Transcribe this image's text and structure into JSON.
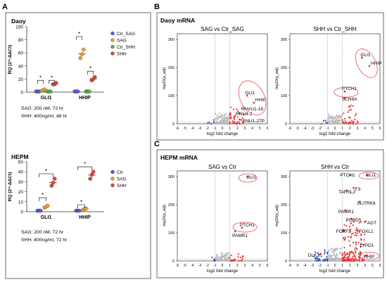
{
  "panel_letters": {
    "a": "A",
    "b": "B",
    "c": "C"
  },
  "colors": {
    "ctr_purple": "#5b5bd6",
    "sag_orange": "#f0a030",
    "ctr_shh_green": "#56b04a",
    "shh_red": "#e3443a",
    "volcano_up": "#e83030",
    "volcano_down": "#3050c0",
    "volcano_ns": "#b8b8b8",
    "highlight": "#e05050"
  },
  "panel_a": {
    "daoy": {
      "title": "Daoy",
      "ylabel": "RQ (2^-ΔΔCt)",
      "categories": [
        "GLI1",
        "HHIP"
      ],
      "ylim": [
        0,
        100
      ],
      "yticks": [
        "0",
        "20",
        "40",
        "60",
        "80",
        "100"
      ],
      "legend": [
        "Ctr_SAG",
        "SAG",
        "Ctr_SHH",
        "SHH"
      ],
      "sig": [
        "*",
        "*",
        "*",
        "*"
      ],
      "notes": [
        "SAG: 200 nM, 72 hr",
        "SHH: 400ng/ml, 48 hr"
      ]
    },
    "hepm": {
      "title": "HEPM",
      "ylabel": "RQ (2^-ΔΔCt)",
      "categories": [
        "GLI1",
        "HHIP"
      ],
      "ylim": [
        0,
        50
      ],
      "yticks": [
        "0",
        "10",
        "20",
        "30",
        "40",
        "50"
      ],
      "legend": [
        "Ctr",
        "SAG",
        "SHH"
      ],
      "sig": [
        "*",
        "*",
        "*",
        "*"
      ],
      "notes": [
        "SAG: 200 nM, 72 hr",
        "SHH: 400ng/ml, 72 hr"
      ]
    }
  },
  "panel_b": {
    "title": "Daoy mRNA",
    "plot1": {
      "title": "SAG vs Ctr_SAG",
      "genes": [
        "GLI1",
        "HHIP",
        "RNVU1-18",
        "RNU4-2",
        "RNU1-27P"
      ]
    },
    "plot2": {
      "title": "SHH vs Ctr_SHH",
      "genes": [
        "GLI1",
        "HHIP",
        "PTCH1",
        "SCN9A"
      ]
    }
  },
  "panel_c": {
    "title": "HEPM mRNA",
    "plot1": {
      "title": "SAG vs Ctr",
      "genes": [
        "GLI1",
        "PTCH1",
        "PAMR1"
      ]
    },
    "plot2": {
      "title": "SHH vs Ctr",
      "genes": [
        "PTCH1",
        "GLI1",
        "TARSL2",
        "F3",
        "SLITRK6",
        "PAMR1",
        "PGBD5",
        "AGT",
        "FOXF2",
        "FOXL1",
        "LYPD1",
        "DLK1",
        "HHIP"
      ]
    }
  },
  "volcano_axes": {
    "xlabel": "log2 fold change",
    "ylabel": "-log10(p_adj)",
    "xticks": [
      "-6",
      "-5",
      "-4",
      "-3",
      "-2",
      "-1",
      "0",
      "1",
      "2",
      "3",
      "4",
      "5",
      "6"
    ],
    "yticks": [
      "0",
      "100",
      "200",
      "300"
    ]
  },
  "chart_data": [
    {
      "type": "scatter",
      "title": "Daoy",
      "ylabel": "RQ (2^-ΔΔCt)",
      "categories": [
        "GLI1",
        "HHIP"
      ],
      "ylim": [
        0,
        100
      ],
      "series": [
        {
          "name": "Ctr_SAG",
          "values": [
            [
              1,
              1,
              1
            ],
            [
              1,
              1,
              1
            ]
          ]
        },
        {
          "name": "SAG",
          "values": [
            [
              2,
              3,
              4
            ],
            [
              52,
              58,
              65
            ]
          ]
        },
        {
          "name": "Ctr_SHH",
          "values": [
            [
              1,
              1,
              1
            ],
            [
              1,
              1,
              1
            ]
          ]
        },
        {
          "name": "SHH",
          "values": [
            [
              12,
              12,
              14
            ],
            [
              18,
              20,
              23
            ]
          ]
        }
      ]
    },
    {
      "type": "scatter",
      "title": "HEPM",
      "ylabel": "RQ (2^-ΔΔCt)",
      "categories": [
        "GLI1",
        "HHIP"
      ],
      "ylim": [
        0,
        50
      ],
      "series": [
        {
          "name": "Ctr",
          "values": [
            [
              1,
              1,
              1
            ],
            [
              1,
              1,
              1
            ]
          ]
        },
        {
          "name": "SAG",
          "values": [
            [
              4,
              5,
              6
            ],
            [
              2,
              3,
              3
            ]
          ]
        },
        {
          "name": "SHH",
          "values": [
            [
              26,
              29,
              33
            ],
            [
              33,
              37,
              40
            ]
          ]
        }
      ]
    },
    {
      "type": "scatter",
      "title": "SAG vs Ctr_SAG",
      "xlabel": "log2 fold change",
      "ylabel": "-log10(p_adj)",
      "xlim": [
        -6,
        6
      ],
      "ylim": [
        0,
        320
      ],
      "thresholds": {
        "x": [
          -1,
          1
        ],
        "y": 1.3
      },
      "labeled_points": [
        {
          "gene": "GLI1",
          "x": 3.3,
          "y": 100
        },
        {
          "gene": "HHIP",
          "x": 4.2,
          "y": 75
        },
        {
          "gene": "RNVU1-18",
          "x": 2.3,
          "y": 38
        },
        {
          "gene": "RNU4-2",
          "x": 1.6,
          "y": 25
        },
        {
          "gene": "RNU1-27P",
          "x": 2.3,
          "y": 15
        }
      ]
    },
    {
      "type": "scatter",
      "title": "SHH vs Ctr_SHH",
      "xlabel": "log2 fold change",
      "ylabel": "-log10(p_adj)",
      "xlim": [
        -6,
        6
      ],
      "ylim": [
        0,
        320
      ],
      "thresholds": {
        "x": [
          -1,
          1
        ],
        "y": 1.3
      },
      "labeled_points": [
        {
          "gene": "GLI1",
          "x": 3.6,
          "y": 235
        },
        {
          "gene": "HHIP",
          "x": 4.6,
          "y": 205
        },
        {
          "gene": "PTCH1",
          "x": 1.3,
          "y": 115
        },
        {
          "gene": "SCN9A",
          "x": 1.3,
          "y": 92
        }
      ]
    },
    {
      "type": "scatter",
      "title": "SAG vs Ctr",
      "xlabel": "log2 fold change",
      "ylabel": "-log10(p_adj)",
      "xlim": [
        -6,
        6
      ],
      "ylim": [
        0,
        320
      ],
      "thresholds": {
        "x": [
          -1,
          1
        ],
        "y": 1.3
      },
      "labeled_points": [
        {
          "gene": "GLI1",
          "x": 3.4,
          "y": 300
        },
        {
          "gene": "PTCH1",
          "x": 2.6,
          "y": 118
        },
        {
          "gene": "PAMR1",
          "x": 1.7,
          "y": 105
        }
      ]
    },
    {
      "type": "scatter",
      "title": "SHH vs Ctr",
      "xlabel": "log2 fold change",
      "ylabel": "-log10(p_adj)",
      "xlim": [
        -6,
        6
      ],
      "ylim": [
        0,
        320
      ],
      "thresholds": {
        "x": [
          -1,
          1
        ],
        "y": 1.3
      },
      "labeled_points": [
        {
          "gene": "PTCH1",
          "x": 2.0,
          "y": 305
        },
        {
          "gene": "GLI1",
          "x": 4.3,
          "y": 305
        },
        {
          "gene": "TARSL2",
          "x": 1.6,
          "y": 250
        },
        {
          "gene": "F3",
          "x": 2.5,
          "y": 260
        },
        {
          "gene": "SLITRK6",
          "x": 3.3,
          "y": 210
        },
        {
          "gene": "PAMR1",
          "x": 1.4,
          "y": 180
        },
        {
          "gene": "PGBD5",
          "x": 2.2,
          "y": 150
        },
        {
          "gene": "AGT",
          "x": 4.1,
          "y": 140
        },
        {
          "gene": "FOXF2",
          "x": 1.1,
          "y": 110
        },
        {
          "gene": "FOXL1",
          "x": 3.0,
          "y": 110
        },
        {
          "gene": "LYPD1",
          "x": 3.5,
          "y": 60
        },
        {
          "gene": "DLK1",
          "x": -1.9,
          "y": 25
        },
        {
          "gene": "HHIP",
          "x": 4.2,
          "y": 20
        }
      ]
    }
  ]
}
